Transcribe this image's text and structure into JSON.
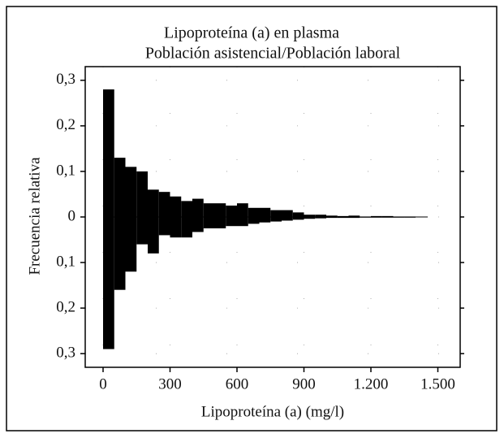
{
  "chart_data": {
    "type": "histogram",
    "title": "Lipoproteína (a) en plasma",
    "subtitle": "Población asistencial/Población laboral",
    "xlabel": "Lipoproteína (a) (mg/l)",
    "ylabel": "Frecuencia relativa",
    "bins": [
      0,
      50,
      100,
      150,
      200,
      250,
      300,
      350,
      400,
      450,
      500,
      550,
      600,
      650,
      700,
      750,
      800,
      850,
      900,
      950,
      1000,
      1050,
      1100,
      1150,
      1200,
      1250,
      1300,
      1350,
      1400
    ],
    "series": [
      {
        "color": "#000000",
        "values": [
          0.28,
          0.13,
          0.11,
          0.1,
          0.06,
          0.055,
          0.045,
          0.035,
          0.04,
          0.03,
          0.03,
          0.025,
          0.03,
          0.02,
          0.02,
          0.015,
          0.015,
          0.01,
          0.005,
          0.005,
          0.003,
          0.002,
          0.003,
          0.001,
          0.002,
          0.002,
          0.001,
          0.001
        ]
      },
      {
        "color": "#000000",
        "values": [
          -0.29,
          -0.16,
          -0.12,
          -0.06,
          -0.08,
          -0.04,
          -0.045,
          -0.045,
          -0.033,
          -0.025,
          -0.025,
          -0.02,
          -0.02,
          -0.015,
          -0.012,
          -0.01,
          -0.008,
          -0.006,
          -0.004,
          -0.003,
          -0.002,
          -0.002,
          -0.002,
          -0.001,
          -0.001,
          -0.001,
          -0.001,
          -0.001
        ]
      }
    ],
    "xlim": [
      -80,
      1600
    ],
    "ylim": [
      -0.33,
      0.33
    ],
    "xticks": [
      0,
      300,
      600,
      900,
      {
        "value": 1200,
        "label": "1.200"
      },
      {
        "value": 1500,
        "label": "1.500"
      }
    ],
    "yticks": [
      {
        "value": 0.3,
        "label": "0,3"
      },
      {
        "value": 0.2,
        "label": "0,2"
      },
      {
        "value": 0.1,
        "label": "0,1"
      },
      0,
      {
        "value": -0.1,
        "label": "0,1"
      },
      {
        "value": -0.2,
        "label": "0,2"
      },
      {
        "value": -0.3,
        "label": "0,3"
      }
    ],
    "grid": true
  }
}
